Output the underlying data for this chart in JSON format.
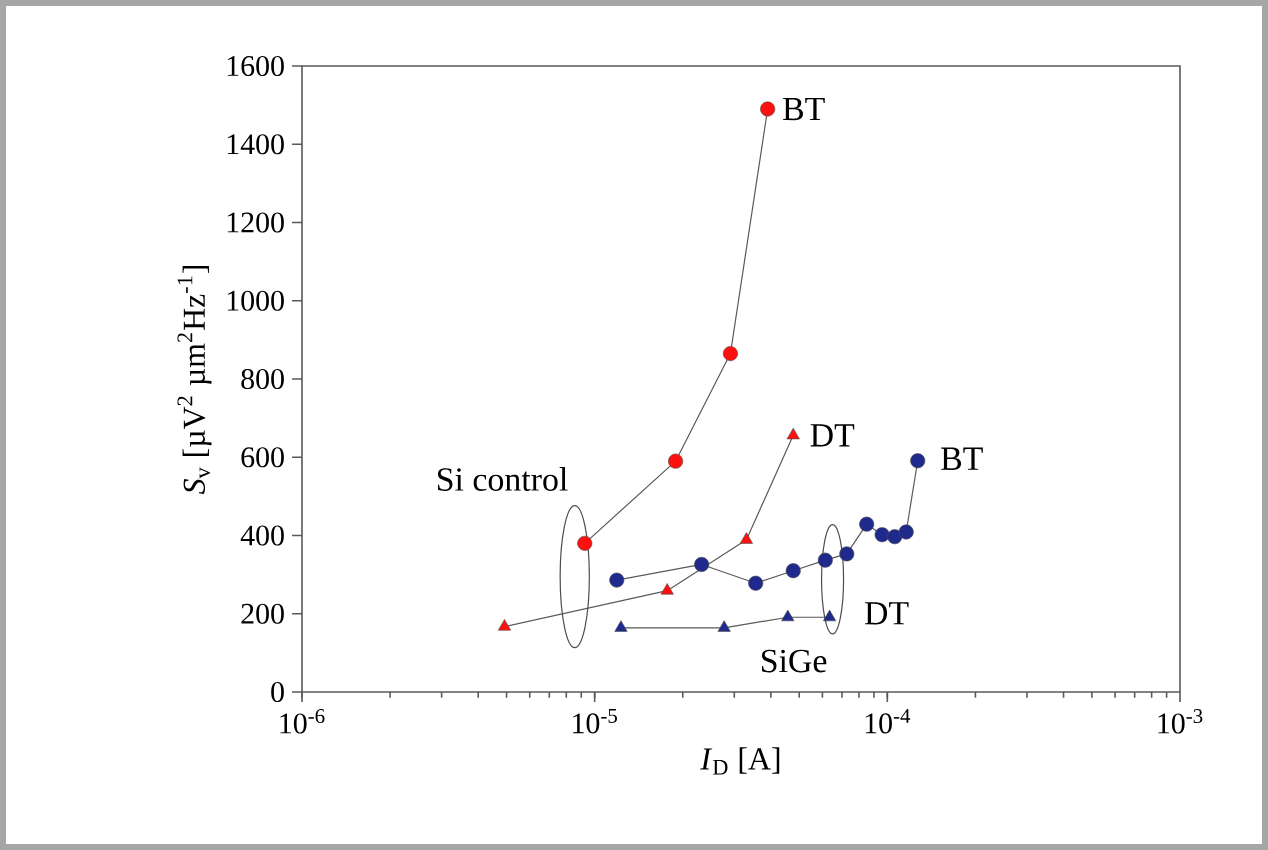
{
  "chart_data": {
    "type": "line",
    "xlabel": "*I*$_{D}$ [A]",
    "ylabel": "*S*$_{v}$ [µV$^{2}$ µm$^{2}$Hz$^{-1}$]",
    "log": "x",
    "xlim": [
      1e-06,
      0.001
    ],
    "ylim": [
      0,
      1600
    ],
    "xticks": [
      {
        "value": 1e-06,
        "label": "10$^{-6}$"
      },
      {
        "value": 1e-05,
        "label": "10$^{-5}$"
      },
      {
        "value": 0.0001,
        "label": "10$^{-4}$"
      },
      {
        "value": 0.001,
        "label": "10$^{-3}$"
      }
    ],
    "yticks": [
      0,
      200,
      400,
      600,
      800,
      1000,
      1200,
      1400,
      1600
    ],
    "grid": false,
    "series": [
      {
        "color": "#ff1010",
        "marker": "circle",
        "x": [
          9.25e-06,
          1.89e-05,
          2.91e-05,
          3.9e-05
        ],
        "values": [
          380,
          590,
          865,
          1490
        ]
      },
      {
        "color": "#ff1010",
        "marker": "triangle",
        "x": [
          4.92e-06,
          1.77e-05,
          3.3e-05,
          4.77e-05
        ],
        "values": [
          167,
          259,
          389,
          656
        ]
      },
      {
        "color": "#1f2a8c",
        "marker": "circle",
        "x": [
          1.19e-05,
          2.32e-05,
          3.55e-05,
          4.77e-05,
          6.14e-05,
          7.27e-05,
          8.5e-05,
          9.6e-05,
          0.000106,
          0.000116,
          0.000127
        ],
        "values": [
          286,
          326,
          278,
          310,
          337,
          353,
          429,
          402,
          397,
          409,
          591
        ]
      },
      {
        "color": "#1f2a8c",
        "marker": "triangle",
        "x": [
          1.23e-05,
          2.77e-05,
          4.57e-05,
          6.35e-05
        ],
        "values": [
          164,
          164,
          191,
          191
        ]
      }
    ],
    "annotations": [
      {
        "text": "BT",
        "x": 3.9e-05,
        "y": 1490
      },
      {
        "text": "DT",
        "x": 4.77e-05,
        "y": 656
      },
      {
        "text": "BT",
        "x": 0.000127,
        "y": 591
      },
      {
        "text": "Si control",
        "x": 9.25e-06,
        "y": 380
      },
      {
        "text": "DT",
        "x": 6.35e-05,
        "y": 191
      },
      {
        "text": "SiGe",
        "x": 6.35e-05,
        "y": 191
      }
    ]
  }
}
